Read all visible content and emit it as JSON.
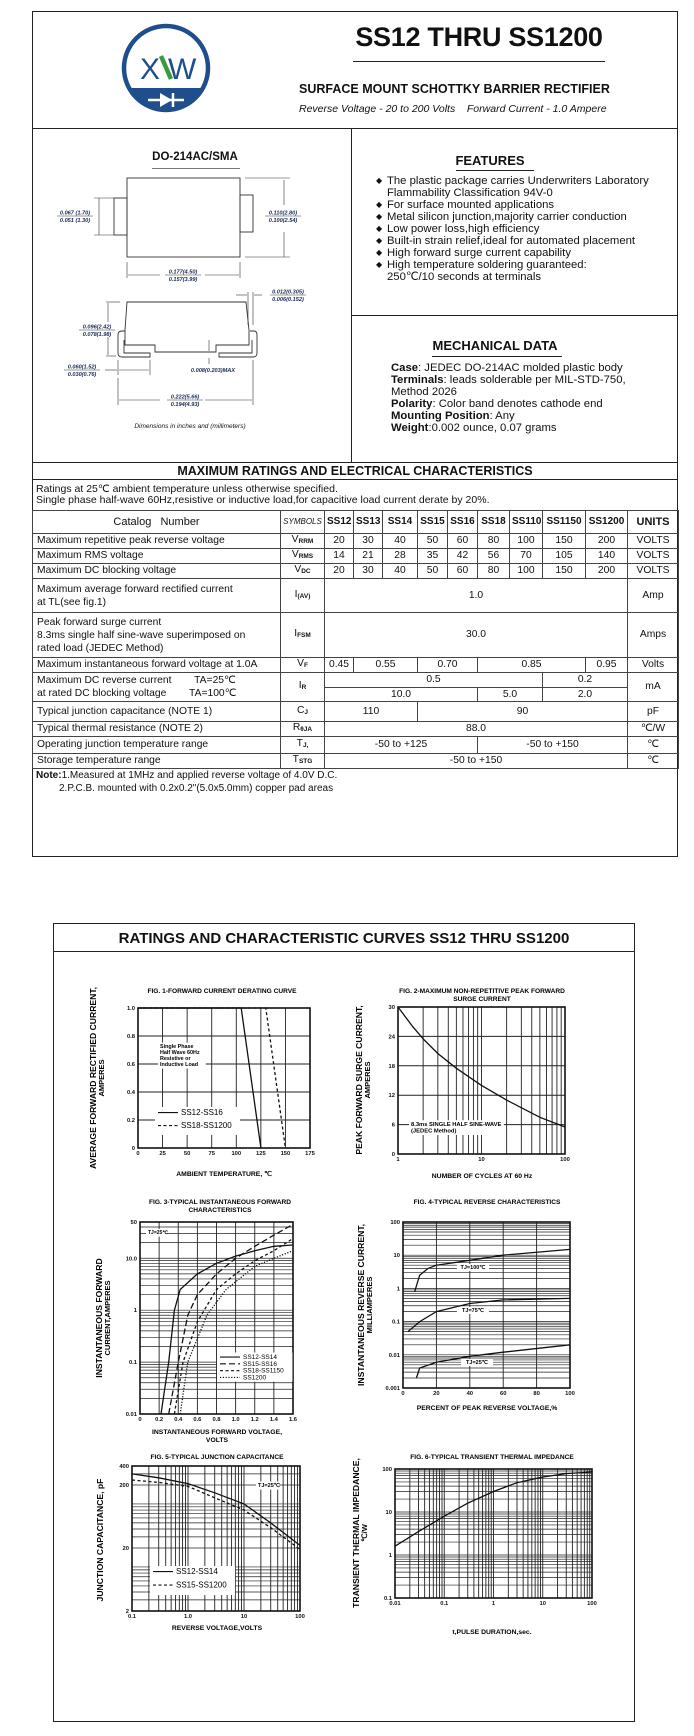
{
  "header": {
    "logo_text": "XW",
    "title": "SS12 THRU SS1200",
    "subtitle": "SURFACE MOUNT SCHOTTKY BARRIER RECTIFIER",
    "specs": "Reverse Voltage - 20 to 200 Volts    Forward Current - 1.0 Ampere",
    "colors": {
      "logo_blue": "#1f4e8c",
      "logo_green": "#3c9a3c"
    }
  },
  "package": {
    "name": "DO-214AC/SMA",
    "dims": {
      "tab_width": [
        "0.067 (1.70)",
        "0.051 (1.30)"
      ],
      "body_height": [
        "0.110(2.80)",
        "0.100(2.54)"
      ],
      "body_length": [
        "0.177(4.50)",
        "0.157(3.99)"
      ],
      "lead_thickness": [
        "0.012(0.305)",
        "0.006(0.152)"
      ],
      "overall_height": [
        "0.096(2.42)",
        "0.078(1.98)"
      ],
      "lead_length": [
        "0.060(1.52)",
        "0.030(0.76)"
      ],
      "standoff": "0.008(0.203)MAX",
      "overall_length": [
        "0.222(5.66)",
        "0.194(4.93)"
      ]
    },
    "note": "Dimensions in inches and (millimeters)"
  },
  "features": {
    "title": "FEATURES",
    "items": [
      [
        "The plastic package carries Underwriters Laboratory",
        "Flammability Classification 94V-0"
      ],
      [
        "For surface mounted applications"
      ],
      [
        "Metal silicon junction,majority carrier conduction"
      ],
      [
        "Low power loss,high efficiency"
      ],
      [
        "Built-in strain relief,ideal for automated placement"
      ],
      [
        "High forward surge current capability"
      ],
      [
        "High temperature soldering guaranteed:",
        "250℃/10 seconds at terminals"
      ]
    ]
  },
  "mechanical": {
    "title": "MECHANICAL DATA",
    "items": [
      {
        "label": "Case",
        "text": ": JEDEC DO-214AC molded plastic body"
      },
      {
        "label": "Terminals",
        "text": ": leads solderable per MIL-STD-750,"
      },
      {
        "label": "",
        "text": "Method 2026"
      },
      {
        "label": "Polarity",
        "text": ": Color band denotes cathode end"
      },
      {
        "label": "Mounting Position",
        "text": ": Any"
      },
      {
        "label": "Weight",
        "text": ":0.002 ounce, 0.07 grams"
      }
    ]
  },
  "ratings": {
    "title": "MAXIMUM RATINGS AND ELECTRICAL CHARACTERISTICS",
    "conditions": [
      "Ratings at 25℃ ambient temperature unless otherwise specified.",
      "Single phase half-wave 60Hz,resistive or inductive load,for capacitive load current derate by 20%."
    ],
    "columns": {
      "catalog": "Catalog   Number",
      "symbols": "SYMBOLS",
      "parts": [
        "SS12",
        "SS13",
        "SS14",
        "SS15",
        "SS16",
        "SS18",
        "SS110",
        "SS1150",
        "SS1200"
      ],
      "units": "UNITS"
    },
    "rows": [
      {
        "param": [
          "Maximum repetitive peak reverse voltage"
        ],
        "sym": [
          "V",
          "RRM"
        ],
        "values": [
          [
            "20",
            "30",
            "40",
            "50",
            "60",
            "80",
            "100",
            "150",
            "200"
          ]
        ],
        "unit": "VOLTS"
      },
      {
        "param": [
          "Maximum RMS voltage"
        ],
        "sym": [
          "V",
          "RMS"
        ],
        "values": [
          [
            "14",
            "21",
            "28",
            "35",
            "42",
            "56",
            "70",
            "105",
            "140"
          ]
        ],
        "unit": "VOLTS"
      },
      {
        "param": [
          "Maximum DC blocking voltage"
        ],
        "sym": [
          "V",
          "DC"
        ],
        "values": [
          [
            "20",
            "30",
            "40",
            "50",
            "60",
            "80",
            "100",
            "150",
            "200"
          ]
        ],
        "unit": "VOLTS"
      },
      {
        "param": [
          "Maximum average forward rectified current",
          "at TL(see fig.1)"
        ],
        "sym": [
          "I",
          "(AV)"
        ],
        "values": [
          [
            {
              "v": "1.0",
              "span": 9
            }
          ]
        ],
        "unit": "Amp"
      },
      {
        "param": [
          "Peak forward surge current",
          "8.3ms single half sine-wave superimposed on",
          "rated load (JEDEC Method)"
        ],
        "sym": [
          "I",
          "FSM"
        ],
        "values": [
          [
            {
              "v": "30.0",
              "span": 9
            }
          ]
        ],
        "unit": "Amps"
      },
      {
        "param": [
          "Maximum instantaneous forward voltage at 1.0A"
        ],
        "sym": [
          "V",
          "F"
        ],
        "values": [
          [
            "0.45",
            {
              "v": "0.55",
              "span": 2
            },
            {
              "v": "0.70",
              "span": 2
            },
            {
              "v": "0.85",
              "span": 3
            },
            "0.95"
          ]
        ],
        "unit": "Volts"
      },
      {
        "param": [
          "Maximum DC reverse current        TA=25℃",
          "at rated DC blocking voltage        TA=100℃"
        ],
        "sym": [
          "I",
          "R"
        ],
        "values": [
          [
            {
              "v": "0.5",
              "span": 7
            },
            {
              "v": "0.2",
              "span": 2
            }
          ],
          [
            {
              "v": "10.0",
              "span": 5
            },
            {
              "v": "5.0",
              "span": 2
            },
            {
              "v": "2.0",
              "span": 2
            }
          ]
        ],
        "unit": "mA"
      },
      {
        "param": [
          "Typical junction capacitance (NOTE 1)"
        ],
        "sym": [
          "C",
          "J"
        ],
        "values": [
          [
            {
              "v": "110",
              "span": 3
            },
            {
              "v": "90",
              "span": 6
            }
          ]
        ],
        "unit": "pF"
      },
      {
        "param": [
          "Typical thermal resistance (NOTE 2)"
        ],
        "sym": [
          "R",
          "θJA"
        ],
        "values": [
          [
            {
              "v": "88.0",
              "span": 9
            }
          ]
        ],
        "unit": "℃/W"
      },
      {
        "param": [
          "Operating junction temperature range"
        ],
        "sym": [
          "T",
          "J,"
        ],
        "values": [
          [
            {
              "v": "-50 to +125",
              "span": 5
            },
            {
              "v": "-50 to +150",
              "span": 4
            }
          ]
        ],
        "unit": "℃"
      },
      {
        "param": [
          "Storage temperature range"
        ],
        "sym": [
          "T",
          "STG"
        ],
        "values": [
          [
            {
              "v": "-50 to +150",
              "span": 9
            }
          ]
        ],
        "unit": "℃"
      }
    ],
    "notes": {
      "label": "Note:",
      "items": [
        "1.Measured at 1MHz and applied reverse voltage of 4.0V D.C.",
        "2.P.C.B. mounted with 0.2x0.2\"(5.0x5.0mm) copper pad areas"
      ]
    }
  },
  "curves_page": {
    "title": "RATINGS AND CHARACTERISTIC CURVES SS12 THRU SS1200"
  },
  "chart_data": [
    {
      "type": "line",
      "title_lines": [
        "FIG. 1-FORWARD CURRENT DERATING CURVE"
      ],
      "xlabel_lines": [
        "AMBIENT TEMPERATURE, ℃"
      ],
      "ylabel_lines": [
        "AVERAGE FORWARD RECTIFIED CURRENT,",
        "AMPERES"
      ],
      "x_scale": "linear",
      "y_scale": "linear",
      "xlim": [
        0,
        175
      ],
      "ylim": [
        0,
        1.0
      ],
      "xticks": [
        "0",
        "25",
        "50",
        "75",
        "100",
        "125",
        "150",
        "175"
      ],
      "yticks": [
        "0",
        "0.2",
        "0.4",
        "0.6",
        "0.8",
        "1.0"
      ],
      "grid": true,
      "legend": "bottom-left",
      "series": [
        {
          "name": "SS12-SS16",
          "style": "solid",
          "points": [
            [
              0,
              1.0
            ],
            [
              105,
              1.0
            ],
            [
              125,
              0
            ]
          ]
        },
        {
          "name": "SS18-SS1200",
          "style": "dash",
          "points": [
            [
              0,
              1.0
            ],
            [
              130,
              1.0
            ],
            [
              150,
              0
            ]
          ]
        }
      ],
      "annotations": [
        [
          "Single Phase",
          "Half Wave 60Hz",
          "Resistive or",
          "Inductive Load"
        ]
      ]
    },
    {
      "type": "line",
      "title_lines": [
        "FIG. 2-MAXIMUM NON-REPETITIVE PEAK FORWARD",
        "SURGE CURRENT"
      ],
      "xlabel_lines": [
        "NUMBER OF CYCLES AT 60 Hz"
      ],
      "ylabel_lines": [
        "PEAK  FORWARD SURGE  CURRENT,",
        "AMPERES"
      ],
      "x_scale": "log",
      "y_scale": "linear",
      "xlim": [
        1,
        100
      ],
      "ylim": [
        0,
        30
      ],
      "xticks": [
        "1",
        "10",
        "100"
      ],
      "yticks": [
        "0",
        "6",
        "12",
        "18",
        "24",
        "30"
      ],
      "grid": true,
      "legend": "none",
      "series": [
        {
          "style": "solid",
          "points": [
            [
              1,
              30
            ],
            [
              1.5,
              26
            ],
            [
              2,
              23.5
            ],
            [
              3,
              20.5
            ],
            [
              5,
              17.5
            ],
            [
              10,
              14
            ],
            [
              20,
              11
            ],
            [
              50,
              7.5
            ],
            [
              100,
              5.5
            ]
          ]
        }
      ],
      "annotations": [
        [
          "8.3ms SINGLE HALF SINE-WAVE",
          "(JEDEC Method)"
        ]
      ]
    },
    {
      "type": "line",
      "title_lines": [
        "FIG. 3-TYPICAL INSTANTANEOUS FORWARD",
        "CHARACTERISTICS"
      ],
      "xlabel_lines": [
        "INSTANTANEOUS FORWARD VOLTAGE,",
        "VOLTS"
      ],
      "ylabel_lines": [
        "INSTANTANEOUS FORWARD",
        "CURRENT,AMPERES"
      ],
      "x_scale": "linear",
      "y_scale": "log",
      "xlim": [
        0,
        1.6
      ],
      "ylim": [
        0.01,
        50
      ],
      "xticks": [
        "0",
        "0.2",
        "0.4",
        "0.6",
        "0.8",
        "1.0",
        "1.2",
        "1.4",
        "1.6"
      ],
      "yticks": [
        "0.01",
        "0.1",
        "1",
        "10.0",
        "50"
      ],
      "grid": true,
      "legend": "bottom-right",
      "series": [
        {
          "name": "SS12-SS14",
          "style": "solid",
          "points": [
            [
              0.22,
              0.01
            ],
            [
              0.3,
              0.1
            ],
            [
              0.36,
              1
            ],
            [
              0.42,
              2.5
            ],
            [
              0.6,
              5
            ],
            [
              0.8,
              8
            ],
            [
              1.0,
              11
            ],
            [
              1.2,
              14
            ],
            [
              1.4,
              17
            ],
            [
              1.6,
              18
            ]
          ]
        },
        {
          "name": "SS15-SS16",
          "style": "longdash",
          "points": [
            [
              0.3,
              0.01
            ],
            [
              0.4,
              0.1
            ],
            [
              0.5,
              0.8
            ],
            [
              0.6,
              2
            ],
            [
              0.8,
              5
            ],
            [
              1.0,
              10
            ],
            [
              1.2,
              17
            ],
            [
              1.4,
              28
            ],
            [
              1.6,
              45
            ]
          ]
        },
        {
          "name": "SS18-SS1150",
          "style": "dash",
          "points": [
            [
              0.36,
              0.01
            ],
            [
              0.45,
              0.1
            ],
            [
              0.6,
              0.6
            ],
            [
              0.8,
              2.5
            ],
            [
              1.0,
              5
            ],
            [
              1.2,
              9
            ],
            [
              1.4,
              14
            ],
            [
              1.6,
              24
            ]
          ]
        },
        {
          "name": "SS1200",
          "style": "dot",
          "points": [
            [
              0.42,
              0.01
            ],
            [
              0.5,
              0.1
            ],
            [
              0.7,
              0.8
            ],
            [
              0.9,
              2.5
            ],
            [
              1.2,
              7
            ],
            [
              1.4,
              10
            ],
            [
              1.6,
              14
            ]
          ]
        }
      ],
      "annotations": [
        [
          "TJ=25℃"
        ]
      ]
    },
    {
      "type": "line",
      "title_lines": [
        "FIG. 4-TYPICAL REVERSE CHARACTERISTICS"
      ],
      "xlabel_lines": [
        "PERCENT OF PEAK REVERSE VOLTAGE,%"
      ],
      "ylabel_lines": [
        "INSTANTANEOUS REVERSE CURRENT,",
        "MILLIAMPERES"
      ],
      "x_scale": "linear",
      "y_scale": "log",
      "xlim": [
        0,
        100
      ],
      "ylim": [
        0.001,
        100
      ],
      "xticks": [
        "0",
        "20",
        "40",
        "60",
        "80",
        "100"
      ],
      "yticks": [
        "0.001",
        "0.01",
        "0.1",
        "1",
        "10",
        "100"
      ],
      "grid": true,
      "legend": "none",
      "series": [
        {
          "name": "TJ=100℃",
          "style": "solid",
          "points": [
            [
              7,
              0.8
            ],
            [
              10,
              2.5
            ],
            [
              15,
              4
            ],
            [
              20,
              5
            ],
            [
              40,
              7
            ],
            [
              60,
              10
            ],
            [
              100,
              15
            ]
          ]
        },
        {
          "name": "TJ=75℃",
          "style": "solid",
          "points": [
            [
              3,
              0.05
            ],
            [
              10,
              0.1
            ],
            [
              20,
              0.2
            ],
            [
              40,
              0.35
            ],
            [
              60,
              0.45
            ],
            [
              100,
              0.5
            ]
          ]
        },
        {
          "name": "TJ=25℃",
          "style": "solid",
          "points": [
            [
              8,
              0.002
            ],
            [
              10,
              0.004
            ],
            [
              20,
              0.006
            ],
            [
              40,
              0.009
            ],
            [
              60,
              0.012
            ],
            [
              100,
              0.02
            ]
          ]
        }
      ]
    },
    {
      "type": "line",
      "title_lines": [
        "FIG. 5-TYPICAL JUNCTION CAPACITANCE"
      ],
      "xlabel_lines": [
        "REVERSE VOLTAGE,VOLTS"
      ],
      "ylabel_lines": [
        "JUNCTION CAPACITANCE, pF"
      ],
      "x_scale": "log",
      "y_scale": "log",
      "xlim": [
        0.1,
        100
      ],
      "ylim": [
        2,
        400
      ],
      "xticks": [
        "0.1",
        "1.0",
        "10",
        "100"
      ],
      "yticks": [
        "2",
        "20",
        "200",
        "400"
      ],
      "grid": true,
      "legend": "bottom-left",
      "series": [
        {
          "name": "SS12-SS14",
          "style": "solid",
          "points": [
            [
              0.1,
              300
            ],
            [
              0.3,
              260
            ],
            [
              1,
              210
            ],
            [
              3,
              150
            ],
            [
              10,
              100
            ],
            [
              30,
              50
            ],
            [
              100,
              22
            ]
          ]
        },
        {
          "name": "SS15-SS1200",
          "style": "dash",
          "points": [
            [
              0.1,
              240
            ],
            [
              0.3,
              220
            ],
            [
              1,
              190
            ],
            [
              3,
              125
            ],
            [
              10,
              80
            ],
            [
              30,
              42
            ],
            [
              100,
              19
            ]
          ]
        }
      ],
      "annotations": [
        [
          "TJ=25℃"
        ]
      ]
    },
    {
      "type": "line",
      "title_lines": [
        "FIG. 6-TYPICAL TRANSIENT THERMAL IMPEDANCE"
      ],
      "xlabel_lines": [
        "t,PULSE DURATION,sec."
      ],
      "ylabel_lines": [
        "TRANSIENT THERMAL IMPEDANCE,",
        "℃/W"
      ],
      "x_scale": "log",
      "y_scale": "log",
      "xlim": [
        0.01,
        100
      ],
      "ylim": [
        0.1,
        100
      ],
      "xticks": [
        "0.01",
        "0.1",
        "1",
        "10",
        "100"
      ],
      "yticks": [
        "0.1",
        "1",
        "10",
        "100"
      ],
      "grid": true,
      "legend": "none",
      "series": [
        {
          "style": "solid",
          "points": [
            [
              0.01,
              1.6
            ],
            [
              0.03,
              3.5
            ],
            [
              0.1,
              8
            ],
            [
              0.3,
              16
            ],
            [
              1,
              30
            ],
            [
              3,
              48
            ],
            [
              10,
              65
            ],
            [
              30,
              78
            ],
            [
              100,
              85
            ]
          ]
        }
      ]
    }
  ]
}
